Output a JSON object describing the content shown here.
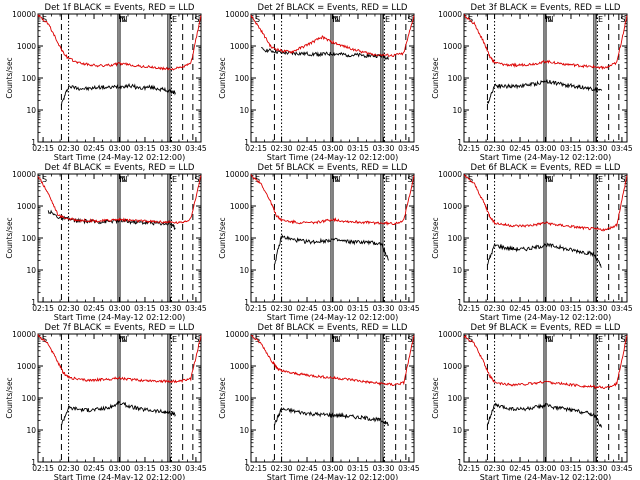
{
  "chart_data": [
    {
      "type": "line",
      "title": "Det 1f BLACK = Events, RED = LLD",
      "ylabel": "Counts/sec",
      "xlabel": "Start Time (24-May-12 02:12:00)",
      "marks": [
        "S",
        "N",
        "N",
        "E",
        "S"
      ],
      "series": [
        {
          "name": "Events",
          "color": "#000000",
          "x": [
            2.43,
            2.5,
            2.6,
            2.7,
            2.8,
            2.9,
            3.0,
            3.1,
            3.2,
            3.3,
            3.4,
            3.48,
            3.55
          ],
          "y": [
            15,
            55,
            48,
            46,
            52,
            50,
            55,
            58,
            48,
            52,
            45,
            40,
            35
          ]
        },
        {
          "name": "LLD",
          "color": "#dd0000",
          "x": [
            2.2,
            2.3,
            2.4,
            2.45,
            2.5,
            2.6,
            2.7,
            2.8,
            2.9,
            3.0,
            3.1,
            3.2,
            3.3,
            3.4,
            3.5,
            3.6,
            3.7,
            3.8
          ],
          "y": [
            9000,
            5000,
            1200,
            600,
            400,
            300,
            260,
            240,
            250,
            280,
            260,
            230,
            220,
            200,
            190,
            210,
            280,
            9000
          ]
        }
      ],
      "xlim": [
        2.2,
        3.8
      ],
      "ylim": [
        1,
        10000
      ],
      "yscale": "log"
    },
    {
      "type": "line",
      "title": "Det 2f BLACK = Events, RED = LLD",
      "ylabel": "Counts/sec",
      "xlabel": "Start Time (24-May-12 02:12:00)",
      "marks": [
        "S",
        "N",
        "N",
        "E",
        "S"
      ],
      "series": [
        {
          "name": "Events",
          "color": "#000000",
          "x": [
            2.3,
            2.4,
            2.5,
            2.6,
            2.7,
            2.8,
            2.9,
            3.0,
            3.1,
            3.2,
            3.3,
            3.4,
            3.5,
            3.55
          ],
          "y": [
            800,
            700,
            620,
            590,
            580,
            560,
            550,
            570,
            540,
            520,
            510,
            500,
            480,
            400
          ]
        },
        {
          "name": "LLD",
          "color": "#dd0000",
          "x": [
            2.2,
            2.3,
            2.4,
            2.5,
            2.6,
            2.7,
            2.8,
            2.9,
            3.0,
            3.1,
            3.2,
            3.3,
            3.4,
            3.5,
            3.6,
            3.7,
            3.8
          ],
          "y": [
            9000,
            3000,
            900,
            700,
            650,
            900,
            1300,
            1900,
            1300,
            1000,
            800,
            650,
            550,
            520,
            500,
            600,
            9000
          ]
        }
      ],
      "xlim": [
        2.2,
        3.8
      ],
      "ylim": [
        1,
        10000
      ],
      "yscale": "log"
    },
    {
      "type": "line",
      "title": "Det 3f BLACK = Events, RED = LLD",
      "ylabel": "Counts/sec",
      "xlabel": "Start Time (24-May-12 02:12:00)",
      "marks": [
        "S",
        "N",
        "N",
        "E",
        "S"
      ],
      "series": [
        {
          "name": "Events",
          "color": "#000000",
          "x": [
            2.43,
            2.5,
            2.6,
            2.7,
            2.8,
            2.9,
            3.0,
            3.1,
            3.2,
            3.3,
            3.4,
            3.48,
            3.55
          ],
          "y": [
            15,
            60,
            55,
            55,
            60,
            65,
            80,
            70,
            60,
            55,
            50,
            45,
            40
          ]
        },
        {
          "name": "LLD",
          "color": "#dd0000",
          "x": [
            2.2,
            2.3,
            2.4,
            2.45,
            2.5,
            2.6,
            2.7,
            2.8,
            2.9,
            3.0,
            3.1,
            3.2,
            3.3,
            3.4,
            3.5,
            3.6,
            3.7,
            3.8
          ],
          "y": [
            9000,
            5000,
            1200,
            500,
            300,
            260,
            250,
            260,
            280,
            330,
            300,
            270,
            250,
            230,
            220,
            210,
            300,
            9000
          ]
        }
      ],
      "xlim": [
        2.2,
        3.8
      ],
      "ylim": [
        1,
        10000
      ],
      "yscale": "log"
    },
    {
      "type": "line",
      "title": "Det 4f BLACK = Events, RED = LLD",
      "ylabel": "Counts/sec",
      "xlabel": "Start Time (24-May-12 02:12:00)",
      "marks": [
        "S",
        "N",
        "N",
        "E",
        "S"
      ],
      "series": [
        {
          "name": "Events",
          "color": "#000000",
          "x": [
            2.3,
            2.4,
            2.5,
            2.6,
            2.7,
            2.8,
            2.9,
            3.0,
            3.1,
            3.2,
            3.3,
            3.4,
            3.5,
            3.55
          ],
          "y": [
            700,
            450,
            380,
            340,
            330,
            320,
            330,
            350,
            320,
            310,
            300,
            290,
            280,
            200
          ]
        },
        {
          "name": "LLD",
          "color": "#dd0000",
          "x": [
            2.2,
            2.3,
            2.4,
            2.5,
            2.6,
            2.7,
            2.8,
            2.9,
            3.0,
            3.1,
            3.2,
            3.3,
            3.4,
            3.5,
            3.6,
            3.7,
            3.8
          ],
          "y": [
            9000,
            2500,
            500,
            400,
            360,
            350,
            340,
            360,
            380,
            360,
            340,
            330,
            320,
            310,
            300,
            400,
            9000
          ]
        }
      ],
      "xlim": [
        2.2,
        3.8
      ],
      "ylim": [
        1,
        10000
      ],
      "yscale": "log"
    },
    {
      "type": "line",
      "title": "Det 5f BLACK = Events, RED = LLD",
      "ylabel": "Counts/sec",
      "xlabel": "Start Time (24-May-12 02:12:00)",
      "marks": [
        "S",
        "N",
        "N",
        "E",
        "S"
      ],
      "series": [
        {
          "name": "Events",
          "color": "#000000",
          "x": [
            2.43,
            2.5,
            2.6,
            2.7,
            2.8,
            2.9,
            3.0,
            3.1,
            3.2,
            3.3,
            3.4,
            3.48,
            3.55
          ],
          "y": [
            15,
            110,
            90,
            80,
            75,
            80,
            90,
            80,
            75,
            75,
            70,
            65,
            20
          ]
        },
        {
          "name": "LLD",
          "color": "#dd0000",
          "x": [
            2.2,
            2.3,
            2.4,
            2.45,
            2.5,
            2.6,
            2.7,
            2.8,
            2.9,
            3.0,
            3.1,
            3.2,
            3.3,
            3.4,
            3.5,
            3.6,
            3.7,
            3.8
          ],
          "y": [
            9000,
            5000,
            1200,
            500,
            360,
            320,
            300,
            300,
            330,
            380,
            340,
            320,
            310,
            300,
            290,
            280,
            350,
            9000
          ]
        }
      ],
      "xlim": [
        2.2,
        3.8
      ],
      "ylim": [
        1,
        10000
      ],
      "yscale": "log"
    },
    {
      "type": "line",
      "title": "Det 6f BLACK = Events, RED = LLD",
      "ylabel": "Counts/sec",
      "xlabel": "Start Time (24-May-12 02:12:00)",
      "marks": [
        "S",
        "N",
        "N",
        "E",
        "S"
      ],
      "series": [
        {
          "name": "Events",
          "color": "#000000",
          "x": [
            2.43,
            2.5,
            2.6,
            2.7,
            2.8,
            2.9,
            3.0,
            3.1,
            3.2,
            3.3,
            3.4,
            3.48,
            3.55
          ],
          "y": [
            15,
            60,
            50,
            45,
            45,
            50,
            60,
            55,
            45,
            40,
            35,
            30,
            12
          ]
        },
        {
          "name": "LLD",
          "color": "#dd0000",
          "x": [
            2.2,
            2.3,
            2.4,
            2.45,
            2.5,
            2.6,
            2.7,
            2.8,
            2.9,
            3.0,
            3.1,
            3.2,
            3.3,
            3.4,
            3.5,
            3.6,
            3.7,
            3.8
          ],
          "y": [
            9000,
            5000,
            1200,
            500,
            300,
            260,
            240,
            240,
            260,
            300,
            260,
            240,
            220,
            200,
            190,
            180,
            260,
            9000
          ]
        }
      ],
      "xlim": [
        2.2,
        3.8
      ],
      "ylim": [
        1,
        10000
      ],
      "yscale": "log"
    },
    {
      "type": "line",
      "title": "Det 7f BLACK = Events, RED = LLD",
      "ylabel": "Counts/sec",
      "xlabel": "Start Time (24-May-12 02:12:00)",
      "marks": [
        "S",
        "N",
        "N",
        "E",
        "S"
      ],
      "series": [
        {
          "name": "Events",
          "color": "#000000",
          "x": [
            2.43,
            2.5,
            2.6,
            2.7,
            2.8,
            2.9,
            3.0,
            3.1,
            3.2,
            3.3,
            3.4,
            3.48,
            3.55
          ],
          "y": [
            15,
            50,
            45,
            42,
            45,
            50,
            70,
            55,
            45,
            42,
            38,
            35,
            30
          ]
        },
        {
          "name": "LLD",
          "color": "#dd0000",
          "x": [
            2.2,
            2.3,
            2.4,
            2.45,
            2.5,
            2.6,
            2.7,
            2.8,
            2.9,
            3.0,
            3.1,
            3.2,
            3.3,
            3.4,
            3.5,
            3.6,
            3.7,
            3.8
          ],
          "y": [
            9000,
            5000,
            1200,
            600,
            450,
            380,
            360,
            370,
            390,
            420,
            380,
            360,
            350,
            340,
            330,
            330,
            400,
            9000
          ]
        }
      ],
      "xlim": [
        2.2,
        3.8
      ],
      "ylim": [
        1,
        10000
      ],
      "yscale": "log"
    },
    {
      "type": "line",
      "title": "Det 8f BLACK = Events, RED = LLD",
      "ylabel": "Counts/sec",
      "xlabel": "Start Time (24-May-12 02:12:00)",
      "marks": [
        "S",
        "N",
        "N",
        "E",
        "S"
      ],
      "series": [
        {
          "name": "Events",
          "color": "#000000",
          "x": [
            2.43,
            2.5,
            2.6,
            2.7,
            2.8,
            2.9,
            3.0,
            3.1,
            3.2,
            3.3,
            3.4,
            3.48,
            3.55
          ],
          "y": [
            15,
            45,
            40,
            35,
            32,
            30,
            30,
            28,
            26,
            24,
            22,
            20,
            15
          ]
        },
        {
          "name": "LLD",
          "color": "#dd0000",
          "x": [
            2.2,
            2.3,
            2.4,
            2.45,
            2.5,
            2.6,
            2.7,
            2.8,
            2.9,
            3.0,
            3.1,
            3.2,
            3.3,
            3.4,
            3.5,
            3.6,
            3.7,
            3.8
          ],
          "y": [
            9000,
            5000,
            1500,
            900,
            700,
            600,
            550,
            500,
            460,
            430,
            400,
            370,
            330,
            300,
            280,
            260,
            300,
            9000
          ]
        }
      ],
      "xlim": [
        2.2,
        3.8
      ],
      "ylim": [
        1,
        10000
      ],
      "yscale": "log"
    },
    {
      "type": "line",
      "title": "Det 9f BLACK = Events, RED = LLD",
      "ylabel": "Counts/sec",
      "xlabel": "Start Time (24-May-12 02:12:00)",
      "marks": [
        "S",
        "N",
        "N",
        "E",
        "S"
      ],
      "series": [
        {
          "name": "Events",
          "color": "#000000",
          "x": [
            2.43,
            2.5,
            2.6,
            2.7,
            2.8,
            2.9,
            3.0,
            3.1,
            3.2,
            3.3,
            3.4,
            3.48,
            3.55
          ],
          "y": [
            15,
            60,
            50,
            45,
            45,
            50,
            60,
            50,
            45,
            40,
            35,
            30,
            12
          ]
        },
        {
          "name": "LLD",
          "color": "#dd0000",
          "x": [
            2.2,
            2.3,
            2.4,
            2.45,
            2.5,
            2.6,
            2.7,
            2.8,
            2.9,
            3.0,
            3.1,
            3.2,
            3.3,
            3.4,
            3.5,
            3.6,
            3.7,
            3.8
          ],
          "y": [
            9000,
            5000,
            1200,
            500,
            300,
            270,
            260,
            270,
            290,
            330,
            290,
            270,
            250,
            230,
            220,
            210,
            280,
            9000
          ]
        }
      ],
      "xlim": [
        2.2,
        3.8
      ],
      "ylim": [
        1,
        10000
      ],
      "yscale": "log"
    }
  ],
  "axes": {
    "xticks": [
      {
        "v": 2.25,
        "label": "02:15"
      },
      {
        "v": 2.5,
        "label": "02:30"
      },
      {
        "v": 2.75,
        "label": "02:45"
      },
      {
        "v": 3.0,
        "label": "03:00"
      },
      {
        "v": 3.25,
        "label": "03:15"
      },
      {
        "v": 3.5,
        "label": "03:30"
      },
      {
        "v": 3.75,
        "label": "03:45"
      }
    ],
    "yticks": [
      {
        "v": 1,
        "label": "1"
      },
      {
        "v": 10,
        "label": "10"
      },
      {
        "v": 100,
        "label": "100"
      },
      {
        "v": 1000,
        "label": "1000"
      },
      {
        "v": 10000,
        "label": "10000"
      }
    ],
    "vlines": [
      {
        "v": 2.43,
        "style": "dash"
      },
      {
        "v": 2.5,
        "style": "dot"
      },
      {
        "v": 2.985,
        "style": "solid"
      },
      {
        "v": 3.005,
        "style": "solid"
      },
      {
        "v": 3.475,
        "style": "solid"
      },
      {
        "v": 3.495,
        "style": "solid"
      },
      {
        "v": 3.51,
        "style": "dot"
      },
      {
        "v": 3.62,
        "style": "dash"
      },
      {
        "v": 3.72,
        "style": "dash"
      }
    ],
    "mark_positions": [
      2.225,
      2.985,
      3.005,
      3.5,
      3.72
    ]
  },
  "colors": {
    "events": "#000000",
    "lld": "#dd0000",
    "background": "#ffffff"
  }
}
